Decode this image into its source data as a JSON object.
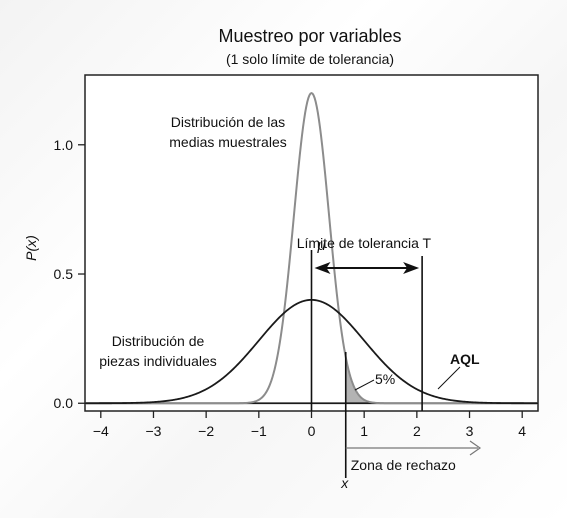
{
  "chart_data": {
    "type": "line",
    "title": "Muestreo por variables",
    "subtitle": "(1 solo límite de tolerancia)",
    "ylabel": "P(x)",
    "xlim": [
      -4.3,
      4.3
    ],
    "ylim": [
      -0.03,
      1.27
    ],
    "x_ticks": [
      -4,
      -3,
      -2,
      -1,
      0,
      1,
      2,
      3,
      4
    ],
    "x_tick_labels": [
      "−4",
      "−3",
      "−2",
      "−1",
      "0",
      "1",
      "2",
      "3",
      "4"
    ],
    "y_ticks": [
      0.0,
      0.5,
      1.0
    ],
    "y_tick_labels": [
      "0.0",
      "0.5",
      "1.0"
    ],
    "series": [
      {
        "name": "Distribución de piezas individuales",
        "color": "#1a1a1a",
        "distribution": "normal",
        "mean": 0,
        "sd": 1,
        "peak": 0.4
      },
      {
        "name": "Distribución de las medias muestrales",
        "color": "#8c8c8c",
        "distribution": "normal",
        "mean": 0,
        "sd": 0.333,
        "peak": 1.2
      }
    ],
    "annotations": {
      "curve_label_individual": "Distribución de\npiezas individuales",
      "curve_label_means": "Distribución de las\nmedias muestrales",
      "mu_label": "μ",
      "mu_x": 0,
      "tolerance_label": "Límite de tolerancia T",
      "tolerance_x": 2.1,
      "critical_x_value": 0.65,
      "x_label": "x",
      "percent_label": "5%",
      "aql_label": "AQL",
      "reject_zone_label": "Zona de rechazo"
    },
    "colors": {
      "individual": "#1a1a1a",
      "means": "#8c8c8c",
      "shade": "#b3b3b3"
    }
  }
}
